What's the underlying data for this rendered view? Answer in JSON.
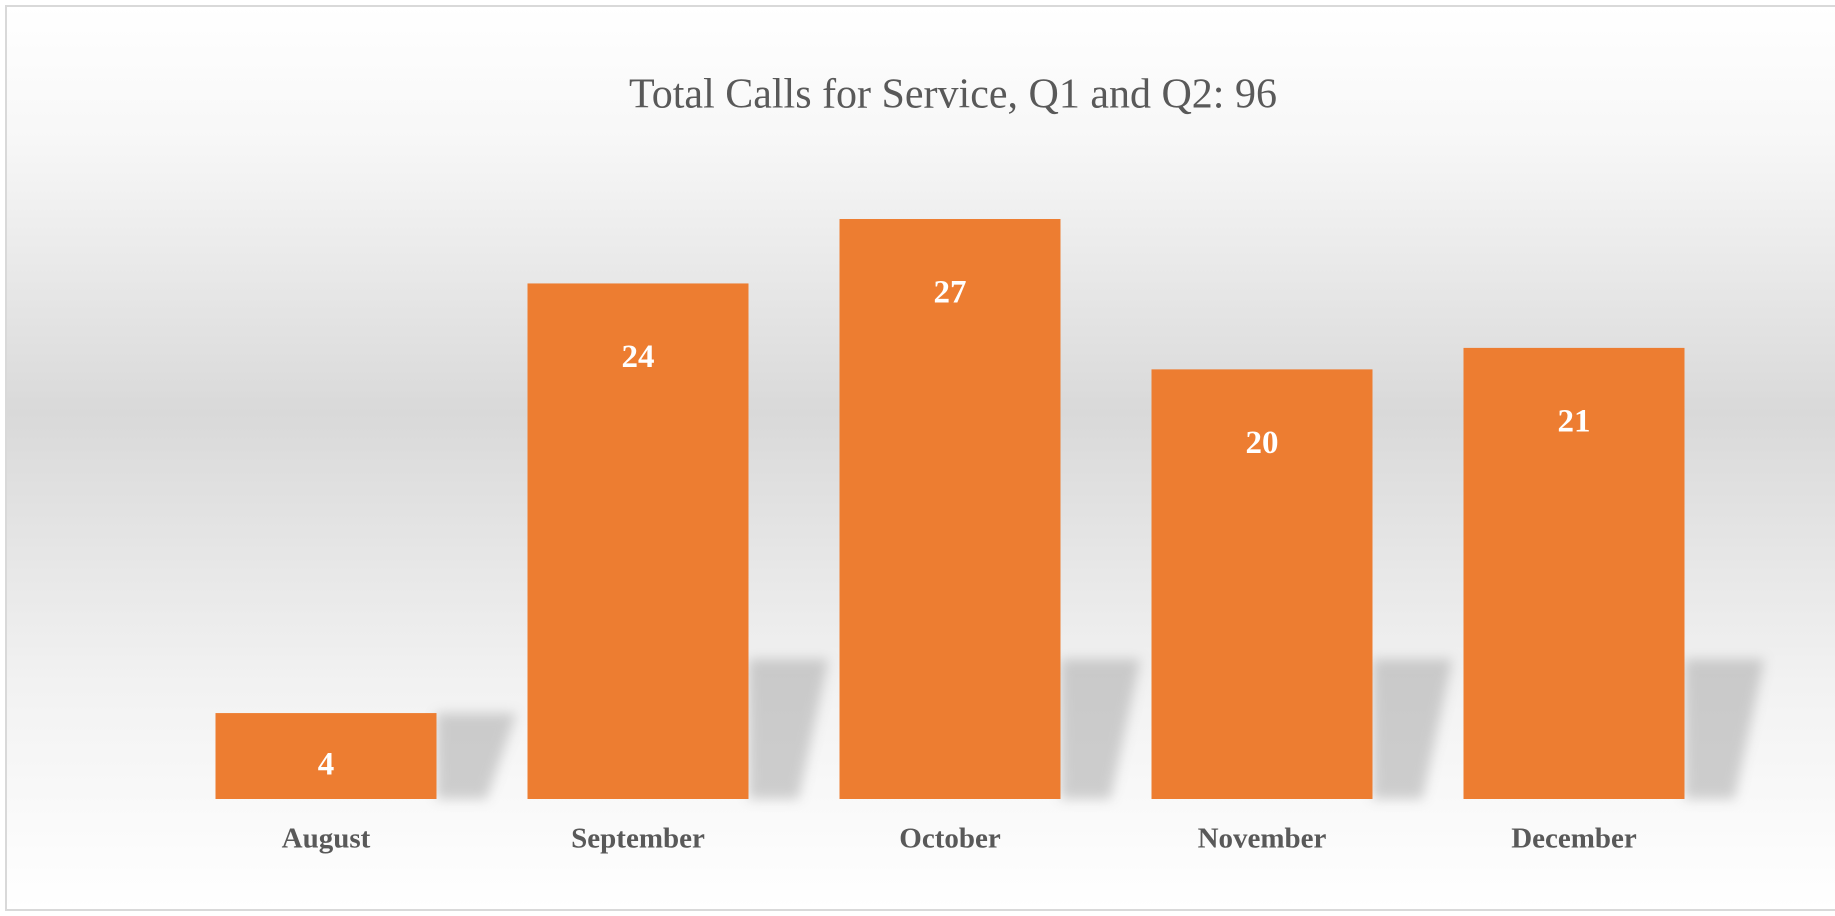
{
  "chart_data": {
    "type": "bar",
    "title": "Total Calls for Service, Q1 and Q2: 96",
    "categories": [
      "August",
      "September",
      "October",
      "November",
      "December"
    ],
    "values": [
      4,
      24,
      27,
      20,
      21
    ],
    "color": "#ed7d31"
  }
}
